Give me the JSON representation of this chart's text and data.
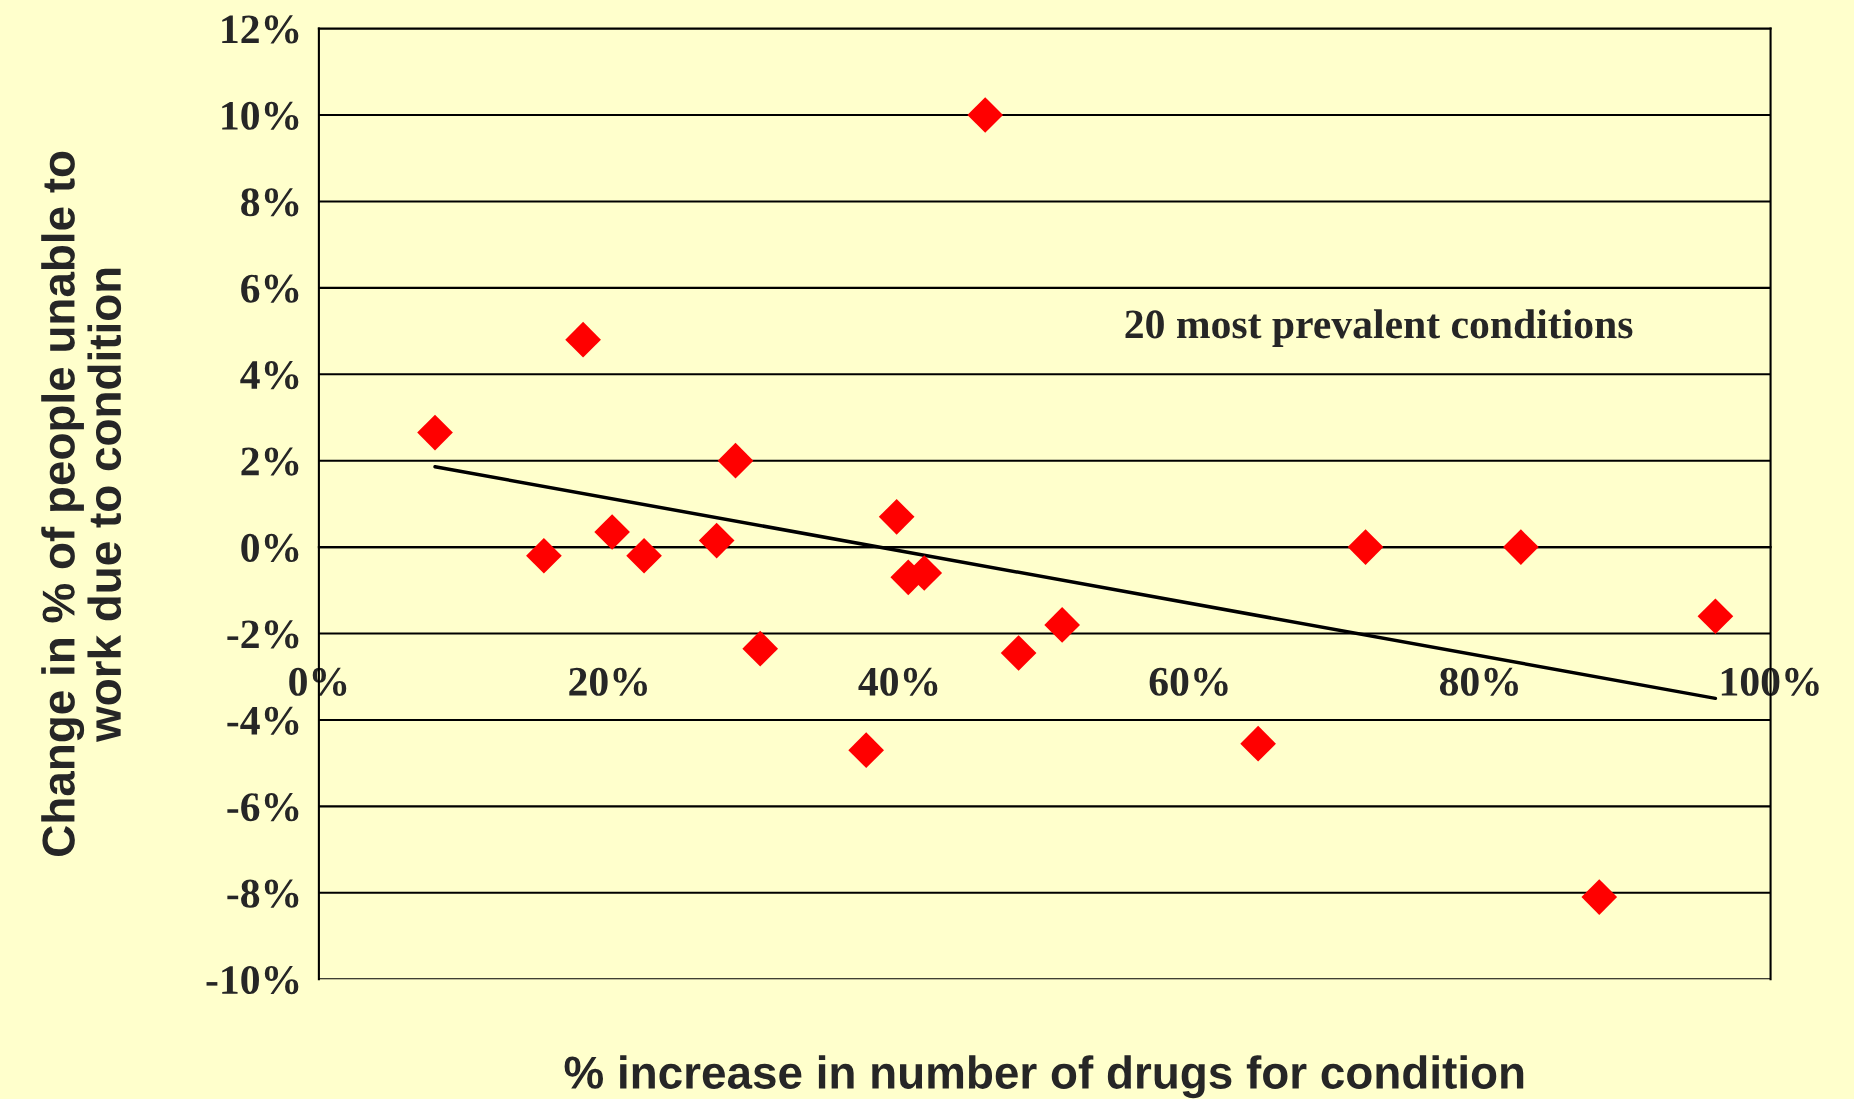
{
  "chart_data": {
    "type": "scatter",
    "xlabel": "% increase in number of drugs for condition",
    "ylabel": "Change in % of people unable to\nwork due to condition",
    "annotations": [
      "20 most prevalent conditions"
    ],
    "series": [
      {
        "color": "#ff0000",
        "marker": "diamond",
        "x": [
          8.0,
          18.2,
          15.5,
          20.2,
          22.4,
          27.4,
          28.7,
          30.4,
          37.7,
          39.8,
          40.6,
          41.7,
          45.9,
          48.2,
          51.2,
          64.7,
          72.1,
          82.8,
          88.2,
          96.2
        ],
        "values": [
          2.65,
          4.8,
          -0.2,
          0.35,
          -0.2,
          0.15,
          2.0,
          -2.35,
          -4.7,
          0.7,
          -0.7,
          -0.6,
          10.0,
          -2.45,
          -1.8,
          -4.55,
          0.0,
          0.0,
          -8.1,
          -1.6
        ]
      },
      {
        "type": "line",
        "color": "#000000",
        "marker": "none",
        "line_style": "solid",
        "x": [
          8.0,
          96.2
        ],
        "values": [
          1.86,
          -3.5
        ]
      }
    ],
    "xlim": [
      0,
      100
    ],
    "xticks": [
      {
        "value": 0,
        "label": "0%"
      },
      {
        "value": 20,
        "label": "20%"
      },
      {
        "value": 40,
        "label": "40%"
      },
      {
        "value": 60,
        "label": "60%"
      },
      {
        "value": 80,
        "label": "80%"
      },
      {
        "value": 100,
        "label": "100%"
      }
    ],
    "ylim": [
      -10,
      12
    ],
    "yticks": [
      {
        "value": -10,
        "label": "-10%"
      },
      {
        "value": -8,
        "label": "-8%"
      },
      {
        "value": -6,
        "label": "-6%"
      },
      {
        "value": -4,
        "label": "-4%"
      },
      {
        "value": -2,
        "label": "-2%"
      },
      {
        "value": 0,
        "label": "0%"
      },
      {
        "value": 2,
        "label": "2%"
      },
      {
        "value": 4,
        "label": "4%"
      },
      {
        "value": 6,
        "label": "6%"
      },
      {
        "value": 8,
        "label": "8%"
      },
      {
        "value": 10,
        "label": "10%"
      },
      {
        "value": 12,
        "label": "12%"
      }
    ],
    "grid": "y",
    "legend": false
  }
}
